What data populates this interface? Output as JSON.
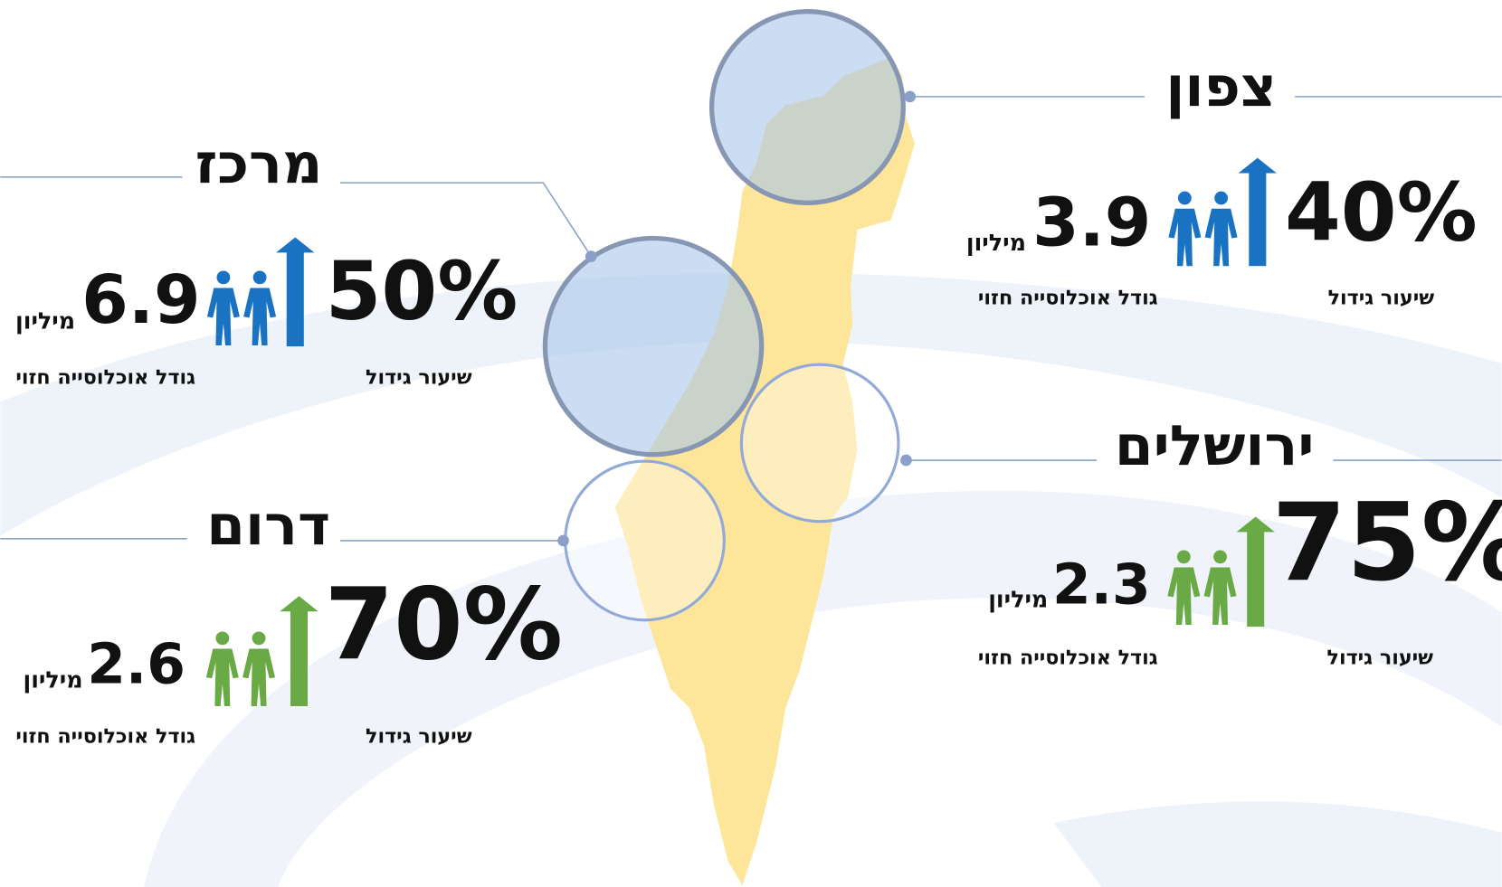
{
  "regions": [
    {
      "name": "צפון",
      "growth_rate": "40%",
      "growth_label": "שיעור גידול",
      "population": "3.9",
      "population_unit": "מיליון",
      "population_label": "גודל אוכלוסייה חזוי",
      "color": "#1a73c2"
    },
    {
      "name": "מרכז",
      "growth_rate": "50%",
      "growth_label": "שיעור גידול",
      "population": "6.9",
      "population_unit": "מיליון",
      "population_label": "גודל אוכלוסייה חזוי",
      "color": "#1a73c2"
    },
    {
      "name": "ירושלים",
      "growth_rate": "75%",
      "growth_label": "שיעור גידול",
      "population": "2.3",
      "population_unit": "מיליון",
      "population_label": "גודל אוכלוסייה חזוי",
      "color": "#6aaa46"
    },
    {
      "name": "דרום",
      "growth_rate": "70%",
      "growth_label": "שיעור גידול",
      "population": "2.6",
      "population_unit": "מיליון",
      "population_label": "גודל אוכלוסייה חזוי",
      "color": "#6aaa46"
    }
  ]
}
